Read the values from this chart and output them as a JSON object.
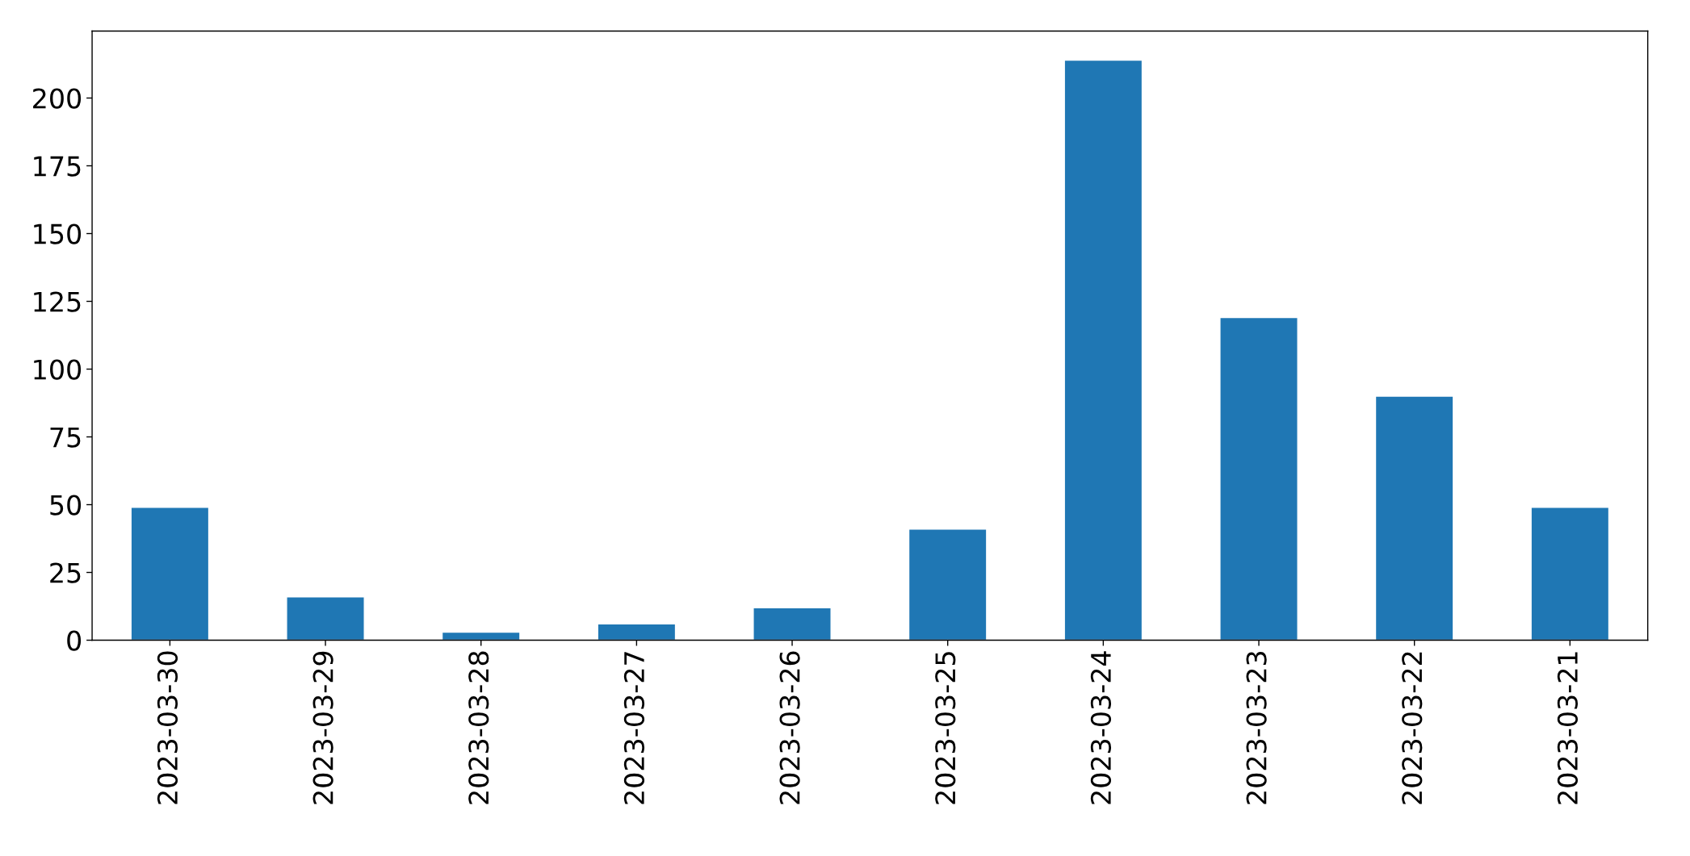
{
  "chart_data": {
    "type": "bar",
    "categories": [
      "2023-03-30",
      "2023-03-29",
      "2023-03-28",
      "2023-03-27",
      "2023-03-26",
      "2023-03-25",
      "2023-03-24",
      "2023-03-23",
      "2023-03-22",
      "2023-03-21"
    ],
    "values": [
      49,
      16,
      3,
      6,
      12,
      41,
      214,
      119,
      90,
      49
    ],
    "color": "#1f77b4",
    "ylim": [
      0,
      224.7
    ],
    "yticks": [
      0,
      25,
      50,
      75,
      100,
      125,
      150,
      175,
      200
    ],
    "grid": false,
    "legend": false
  }
}
